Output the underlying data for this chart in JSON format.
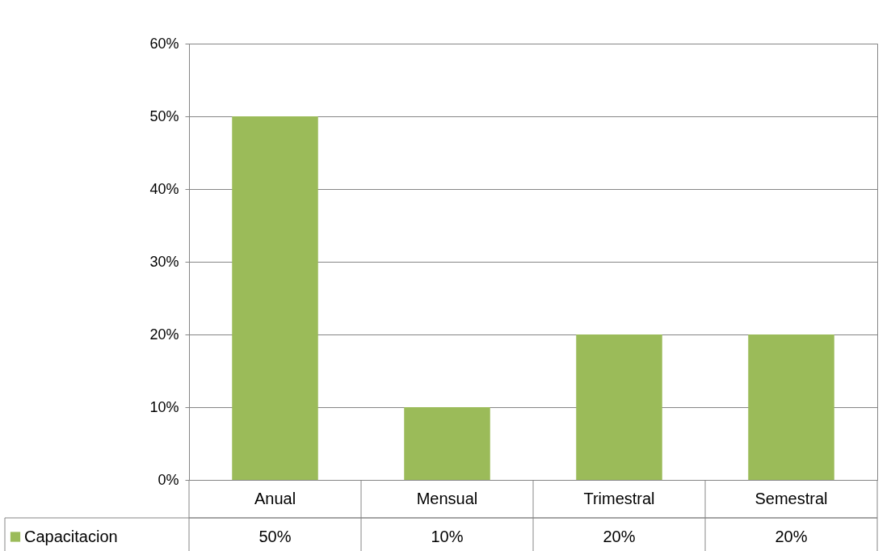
{
  "chart_data": {
    "type": "bar",
    "categories": [
      "Anual",
      "Mensual",
      "Trimestral",
      "Semestral"
    ],
    "series": [
      {
        "name": "Capacitacion",
        "color": "#9bbb59",
        "values": [
          50,
          10,
          20,
          20
        ],
        "value_labels": [
          "50%",
          "10%",
          "20%",
          "20%"
        ]
      }
    ],
    "ylim": [
      0,
      60
    ],
    "yticks": [
      {
        "value": 0,
        "label": "0%"
      },
      {
        "value": 10,
        "label": "10%"
      },
      {
        "value": 20,
        "label": "20%"
      },
      {
        "value": 30,
        "label": "30%"
      },
      {
        "value": 40,
        "label": "40%"
      },
      {
        "value": 50,
        "label": "50%"
      },
      {
        "value": 60,
        "label": "60%"
      }
    ],
    "grid": "y",
    "legend": "bottom"
  }
}
